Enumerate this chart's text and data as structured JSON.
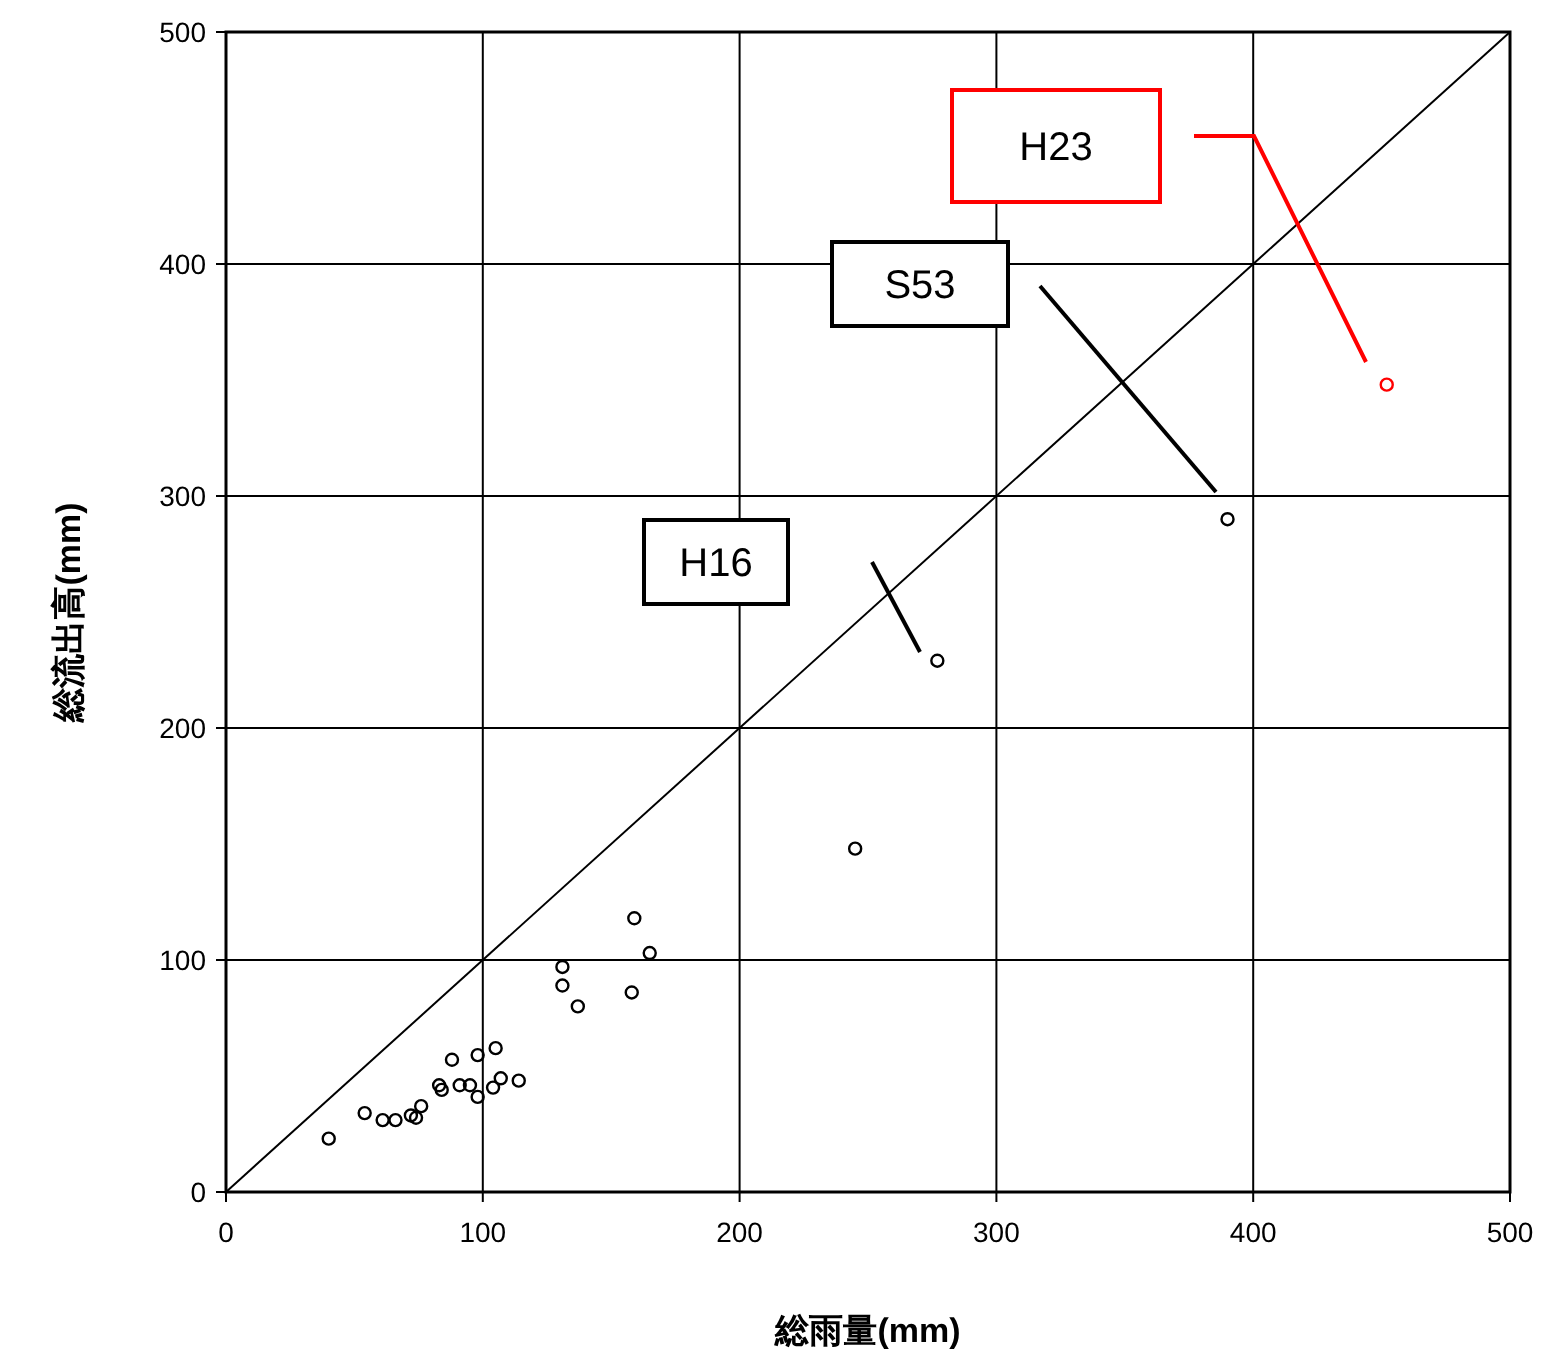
{
  "chart_data": {
    "type": "scatter",
    "xlabel": "総雨量(mm)",
    "ylabel": "総流出高(mm)",
    "xlim": [
      0,
      500
    ],
    "ylim": [
      0,
      500
    ],
    "xticks": [
      0,
      100,
      200,
      300,
      400,
      500
    ],
    "yticks": [
      0,
      100,
      200,
      300,
      400,
      500
    ],
    "grid": true,
    "marker": "circle",
    "series": [
      {
        "type": "line",
        "color": "#000000",
        "marker": "none",
        "x": [
          0,
          500
        ],
        "values": [
          0,
          500
        ]
      },
      {
        "type": "scatter",
        "color": "#000000",
        "x": [
          40,
          54,
          61,
          66,
          72,
          74,
          76,
          83,
          84,
          88,
          91,
          95,
          98,
          98,
          104,
          105,
          107,
          114,
          131,
          131,
          137,
          158,
          159,
          165,
          245,
          277,
          390
        ],
        "values": [
          23,
          34,
          31,
          31,
          33,
          32,
          37,
          46,
          44,
          57,
          46,
          46,
          59,
          41,
          45,
          62,
          49,
          48,
          97,
          89,
          80,
          86,
          118,
          103,
          148,
          229,
          290
        ]
      },
      {
        "color": "#ff0000",
        "x": [
          452
        ],
        "values": [
          348
        ]
      }
    ],
    "annotations": [
      "H16",
      "S53",
      "H23"
    ]
  }
}
